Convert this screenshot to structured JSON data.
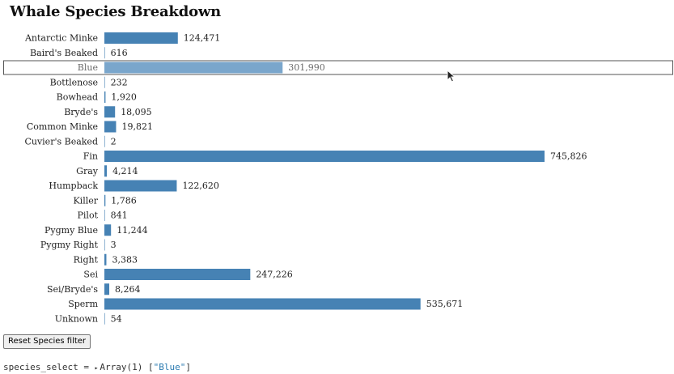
{
  "title": "Whale Species Breakdown",
  "chart_data": {
    "type": "bar",
    "orientation": "horizontal",
    "categories": [
      "Antarctic Minke",
      "Baird's Beaked",
      "Blue",
      "Bottlenose",
      "Bowhead",
      "Bryde's",
      "Common Minke",
      "Cuvier's Beaked",
      "Fin",
      "Gray",
      "Humpback",
      "Killer",
      "Pilot",
      "Pygmy Blue",
      "Pygmy Right",
      "Right",
      "Sei",
      "Sei/Bryde's",
      "Sperm",
      "Unknown"
    ],
    "values": [
      124471,
      616,
      301990,
      232,
      1920,
      18095,
      19821,
      2,
      745826,
      4214,
      122620,
      1786,
      841,
      11244,
      3,
      3383,
      247226,
      8264,
      535671,
      54
    ],
    "value_labels": [
      "124,471",
      "616",
      "301,990",
      "232",
      "1,920",
      "18,095",
      "19,821",
      "2",
      "745,826",
      "4,214",
      "122,620",
      "1,786",
      "841",
      "11,244",
      "3",
      "3,383",
      "247,226",
      "8,264",
      "535,671",
      "54"
    ],
    "selected": [
      "Blue"
    ],
    "xlim": [
      0,
      745826
    ],
    "bar_color": "#4682b4",
    "selected_bar_color": "#7aa6cc",
    "grid": false
  },
  "reset_button": {
    "label": "Reset Species filter"
  },
  "inspector": {
    "variable": "species_select",
    "equals": "=",
    "caret": "▸",
    "type_label": "Array(1)",
    "open_bracket": "[",
    "value": "\"Blue\"",
    "close_bracket": "]"
  }
}
